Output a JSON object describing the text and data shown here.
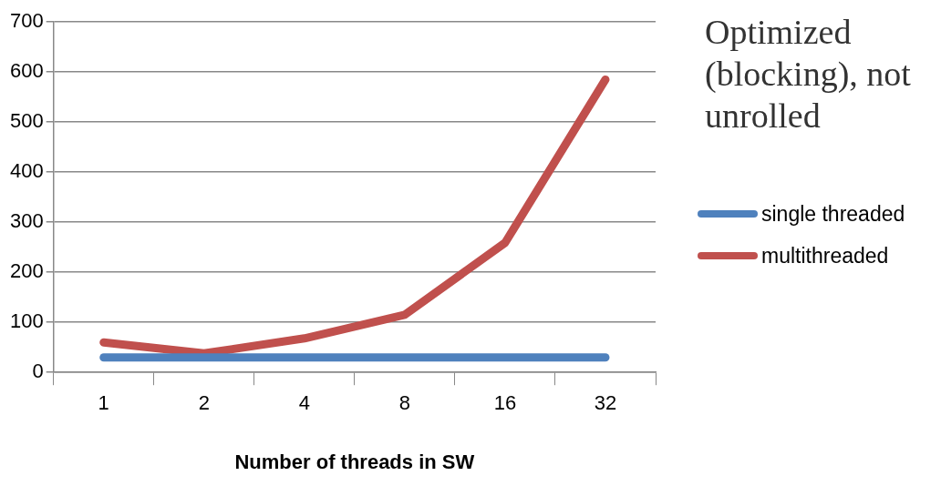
{
  "chart_data": {
    "type": "line",
    "title": "Optimized (blocking), not unrolled",
    "xlabel": "Number of threads in SW",
    "categories": [
      "1",
      "2",
      "4",
      "8",
      "16",
      "32"
    ],
    "series": [
      {
        "name": "single threaded",
        "color": "#4f81bd",
        "values": [
          30,
          30,
          30,
          30,
          30,
          30
        ]
      },
      {
        "name": "multithreaded",
        "color": "#c0504d",
        "values": [
          60,
          38,
          68,
          115,
          259,
          585
        ]
      }
    ],
    "ylim": [
      0,
      700
    ],
    "yticks": [
      0,
      100,
      200,
      300,
      400,
      500,
      600,
      700
    ],
    "grid": "y",
    "legend": "right",
    "marker": "none",
    "line_style": "solid"
  }
}
